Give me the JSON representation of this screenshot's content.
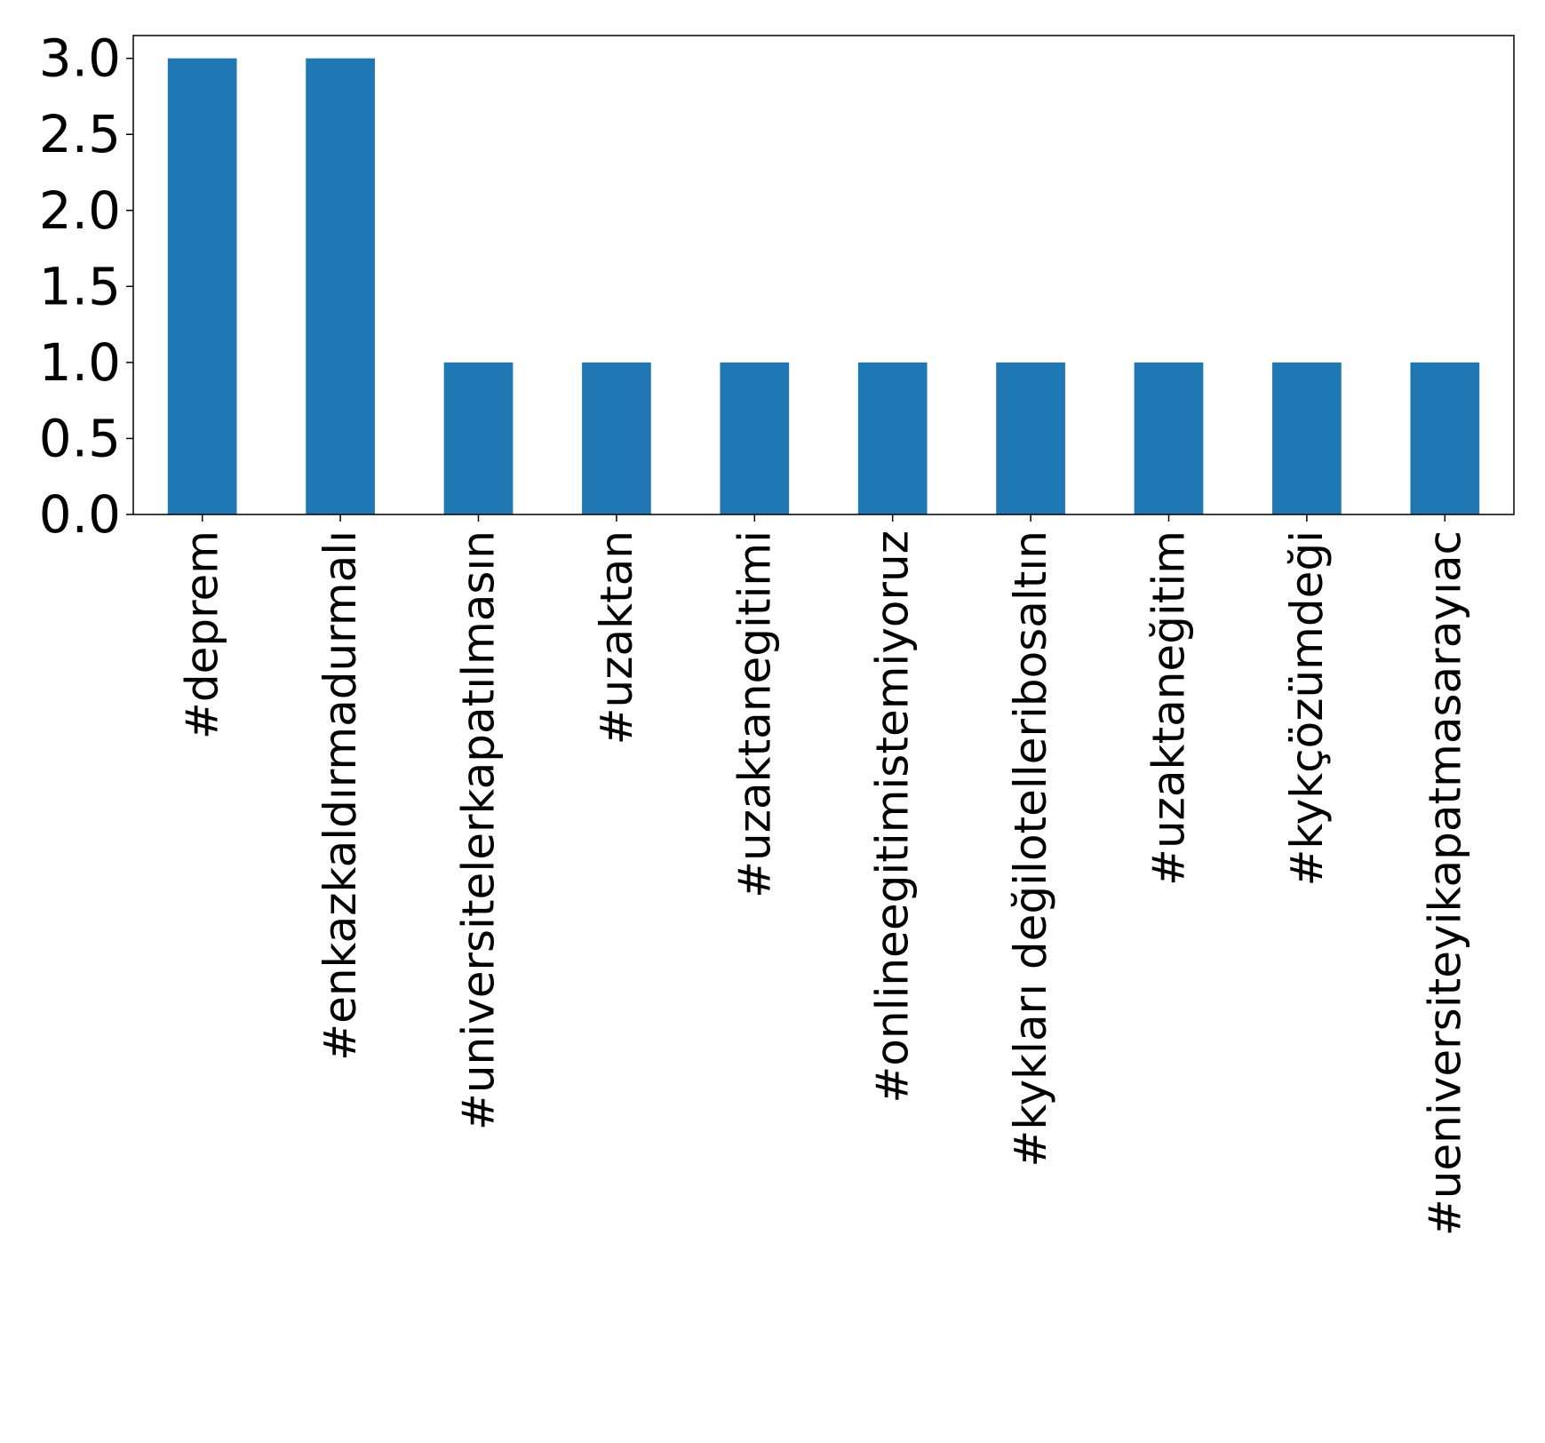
{
  "chart_data": {
    "type": "bar",
    "title": "",
    "xlabel": "",
    "ylabel": "",
    "categories": [
      "#deprem",
      "#enkazkaldırmadurmalı",
      "#universitelerkapatılmasın",
      "#uzaktan",
      "#uzaktanegitimi",
      "#onlineegitimistemiyoruz",
      "#kykları değilotelleribosaltın",
      "#uzaktaneğitim",
      "#kykçözümdeği",
      "#ueniversiteyikapatmasarayıac"
    ],
    "values": [
      3,
      3,
      1,
      1,
      1,
      1,
      1,
      1,
      1,
      1
    ],
    "ylim": [
      0,
      3.15
    ],
    "yticks": [
      "0.0",
      "0.5",
      "1.0",
      "1.5",
      "2.0",
      "2.5",
      "3.0"
    ],
    "grid": false,
    "legend": "none",
    "colors": {
      "bar": "#1f77b4",
      "axis": "#000000",
      "background": "#ffffff"
    }
  }
}
